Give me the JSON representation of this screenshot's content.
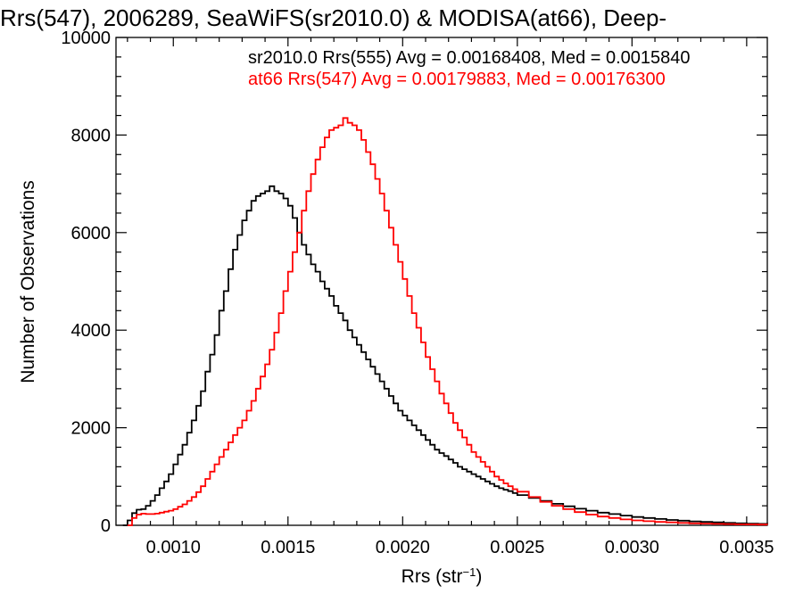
{
  "chart_data": {
    "type": "line",
    "title": "Rrs(547), 2006289, SeaWiFS(sr2010.0) & MODISA(at66), Deep-",
    "xlabel_main": "Rrs (str",
    "xlabel_sup": "−1",
    "xlabel_close": ")",
    "ylabel": "Number of Observations",
    "xlim": [
      0.00075,
      0.00359
    ],
    "ylim": [
      0,
      10000
    ],
    "x_ticks": [
      0.001,
      0.0015,
      0.002,
      0.0025,
      0.003,
      0.0035
    ],
    "x_tick_labels": [
      "0.0010",
      "0.0015",
      "0.0020",
      "0.0025",
      "0.0030",
      "0.0035"
    ],
    "y_ticks": [
      0,
      2000,
      4000,
      6000,
      8000,
      10000
    ],
    "y_tick_labels": [
      "0",
      "2000",
      "4000",
      "6000",
      "8000",
      "10000"
    ],
    "grid": false,
    "annotations": [
      {
        "text": "sr2010.0 Rrs(555) Avg = 0.00168408, Med = 0.0015840",
        "color": "#000000"
      },
      {
        "text": "at66 Rrs(547) Avg = 0.00179883, Med = 0.00176300",
        "color": "#ff0000"
      }
    ],
    "series": [
      {
        "color": "#000000",
        "points": [
          [
            0.00078,
            0
          ],
          [
            0.0008,
            100
          ],
          [
            0.00082,
            250
          ],
          [
            0.00084,
            320
          ],
          [
            0.00086,
            330
          ],
          [
            0.00088,
            400
          ],
          [
            0.0009,
            500
          ],
          [
            0.00092,
            620
          ],
          [
            0.00094,
            760
          ],
          [
            0.00096,
            900
          ],
          [
            0.00098,
            1050
          ],
          [
            0.001,
            1250
          ],
          [
            0.00102,
            1450
          ],
          [
            0.00104,
            1650
          ],
          [
            0.00106,
            1900
          ],
          [
            0.00108,
            2150
          ],
          [
            0.0011,
            2450
          ],
          [
            0.00112,
            2750
          ],
          [
            0.00114,
            3150
          ],
          [
            0.00116,
            3500
          ],
          [
            0.00118,
            3900
          ],
          [
            0.0012,
            4400
          ],
          [
            0.00122,
            4800
          ],
          [
            0.00124,
            5250
          ],
          [
            0.00126,
            5650
          ],
          [
            0.00128,
            5950
          ],
          [
            0.0013,
            6250
          ],
          [
            0.00132,
            6450
          ],
          [
            0.00134,
            6650
          ],
          [
            0.00136,
            6750
          ],
          [
            0.00138,
            6800
          ],
          [
            0.0014,
            6850
          ],
          [
            0.00142,
            6950
          ],
          [
            0.00144,
            6850
          ],
          [
            0.00146,
            6800
          ],
          [
            0.00148,
            6700
          ],
          [
            0.0015,
            6550
          ],
          [
            0.00152,
            6300
          ],
          [
            0.00154,
            6000
          ],
          [
            0.00156,
            5750
          ],
          [
            0.00158,
            5550
          ],
          [
            0.0016,
            5350
          ],
          [
            0.00162,
            5200
          ],
          [
            0.00164,
            5000
          ],
          [
            0.00166,
            4850
          ],
          [
            0.00168,
            4700
          ],
          [
            0.0017,
            4500
          ],
          [
            0.00172,
            4350
          ],
          [
            0.00174,
            4200
          ],
          [
            0.00176,
            4000
          ],
          [
            0.00178,
            3850
          ],
          [
            0.0018,
            3700
          ],
          [
            0.00182,
            3550
          ],
          [
            0.00184,
            3400
          ],
          [
            0.00186,
            3250
          ],
          [
            0.00188,
            3100
          ],
          [
            0.0019,
            2950
          ],
          [
            0.00192,
            2800
          ],
          [
            0.00194,
            2650
          ],
          [
            0.00196,
            2500
          ],
          [
            0.00198,
            2350
          ],
          [
            0.002,
            2250
          ],
          [
            0.00202,
            2150
          ],
          [
            0.00204,
            2050
          ],
          [
            0.00206,
            1950
          ],
          [
            0.00208,
            1850
          ],
          [
            0.0021,
            1750
          ],
          [
            0.00212,
            1650
          ],
          [
            0.00214,
            1550
          ],
          [
            0.00216,
            1480
          ],
          [
            0.00218,
            1420
          ],
          [
            0.0022,
            1350
          ],
          [
            0.00222,
            1280
          ],
          [
            0.00224,
            1200
          ],
          [
            0.00226,
            1150
          ],
          [
            0.00228,
            1100
          ],
          [
            0.0023,
            1050
          ],
          [
            0.00232,
            1000
          ],
          [
            0.00234,
            950
          ],
          [
            0.00236,
            900
          ],
          [
            0.00238,
            850
          ],
          [
            0.0024,
            800
          ],
          [
            0.00242,
            760
          ],
          [
            0.00244,
            730
          ],
          [
            0.00246,
            700
          ],
          [
            0.00248,
            660
          ],
          [
            0.0025,
            620
          ],
          [
            0.00255,
            560
          ],
          [
            0.0026,
            500
          ],
          [
            0.00265,
            440
          ],
          [
            0.0027,
            390
          ],
          [
            0.00275,
            340
          ],
          [
            0.0028,
            300
          ],
          [
            0.00285,
            260
          ],
          [
            0.0029,
            230
          ],
          [
            0.00295,
            200
          ],
          [
            0.003,
            170
          ],
          [
            0.00305,
            150
          ],
          [
            0.0031,
            130
          ],
          [
            0.00315,
            110
          ],
          [
            0.0032,
            95
          ],
          [
            0.00325,
            80
          ],
          [
            0.0033,
            70
          ],
          [
            0.00335,
            60
          ],
          [
            0.0034,
            50
          ],
          [
            0.00345,
            40
          ],
          [
            0.0035,
            35
          ],
          [
            0.00355,
            30
          ],
          [
            0.00359,
            25
          ]
        ]
      },
      {
        "color": "#ff0000",
        "points": [
          [
            0.0008,
            0
          ],
          [
            0.00082,
            150
          ],
          [
            0.00084,
            220
          ],
          [
            0.00086,
            240
          ],
          [
            0.00088,
            230
          ],
          [
            0.0009,
            230
          ],
          [
            0.00092,
            240
          ],
          [
            0.00094,
            260
          ],
          [
            0.00096,
            280
          ],
          [
            0.00098,
            300
          ],
          [
            0.001,
            330
          ],
          [
            0.00102,
            380
          ],
          [
            0.00104,
            430
          ],
          [
            0.00106,
            500
          ],
          [
            0.00108,
            580
          ],
          [
            0.0011,
            680
          ],
          [
            0.00112,
            800
          ],
          [
            0.00114,
            950
          ],
          [
            0.00116,
            1100
          ],
          [
            0.00118,
            1250
          ],
          [
            0.0012,
            1400
          ],
          [
            0.00122,
            1550
          ],
          [
            0.00124,
            1700
          ],
          [
            0.00126,
            1850
          ],
          [
            0.00128,
            2000
          ],
          [
            0.0013,
            2150
          ],
          [
            0.00132,
            2350
          ],
          [
            0.00134,
            2550
          ],
          [
            0.00136,
            2800
          ],
          [
            0.00138,
            3050
          ],
          [
            0.0014,
            3300
          ],
          [
            0.00142,
            3600
          ],
          [
            0.00144,
            3950
          ],
          [
            0.00146,
            4350
          ],
          [
            0.00148,
            4800
          ],
          [
            0.0015,
            5200
          ],
          [
            0.00152,
            5600
          ],
          [
            0.00154,
            6000
          ],
          [
            0.00156,
            6450
          ],
          [
            0.00158,
            6850
          ],
          [
            0.0016,
            7200
          ],
          [
            0.00162,
            7500
          ],
          [
            0.00164,
            7750
          ],
          [
            0.00166,
            7950
          ],
          [
            0.00168,
            8100
          ],
          [
            0.0017,
            8150
          ],
          [
            0.00172,
            8200
          ],
          [
            0.00174,
            8350
          ],
          [
            0.00176,
            8250
          ],
          [
            0.00178,
            8200
          ],
          [
            0.0018,
            8100
          ],
          [
            0.00182,
            7900
          ],
          [
            0.00184,
            7650
          ],
          [
            0.00186,
            7400
          ],
          [
            0.00188,
            7100
          ],
          [
            0.0019,
            6800
          ],
          [
            0.00192,
            6450
          ],
          [
            0.00194,
            6100
          ],
          [
            0.00196,
            5750
          ],
          [
            0.00198,
            5400
          ],
          [
            0.002,
            5050
          ],
          [
            0.00202,
            4700
          ],
          [
            0.00204,
            4350
          ],
          [
            0.00206,
            4050
          ],
          [
            0.00208,
            3750
          ],
          [
            0.0021,
            3450
          ],
          [
            0.00212,
            3200
          ],
          [
            0.00214,
            2950
          ],
          [
            0.00216,
            2700
          ],
          [
            0.00218,
            2500
          ],
          [
            0.0022,
            2300
          ],
          [
            0.00222,
            2100
          ],
          [
            0.00224,
            1950
          ],
          [
            0.00226,
            1800
          ],
          [
            0.00228,
            1650
          ],
          [
            0.0023,
            1500
          ],
          [
            0.00232,
            1400
          ],
          [
            0.00234,
            1300
          ],
          [
            0.00236,
            1200
          ],
          [
            0.00238,
            1100
          ],
          [
            0.0024,
            1000
          ],
          [
            0.00242,
            930
          ],
          [
            0.00244,
            860
          ],
          [
            0.00246,
            800
          ],
          [
            0.00248,
            740
          ],
          [
            0.0025,
            690
          ],
          [
            0.00255,
            580
          ],
          [
            0.0026,
            480
          ],
          [
            0.00265,
            400
          ],
          [
            0.0027,
            330
          ],
          [
            0.00275,
            270
          ],
          [
            0.0028,
            220
          ],
          [
            0.00285,
            180
          ],
          [
            0.0029,
            150
          ],
          [
            0.00295,
            120
          ],
          [
            0.003,
            100
          ],
          [
            0.00305,
            85
          ],
          [
            0.0031,
            70
          ],
          [
            0.00315,
            60
          ],
          [
            0.0032,
            50
          ],
          [
            0.00325,
            40
          ],
          [
            0.0033,
            35
          ],
          [
            0.00335,
            30
          ],
          [
            0.0034,
            25
          ],
          [
            0.00345,
            20
          ],
          [
            0.0035,
            18
          ],
          [
            0.00355,
            15
          ],
          [
            0.00359,
            12
          ]
        ]
      }
    ]
  }
}
